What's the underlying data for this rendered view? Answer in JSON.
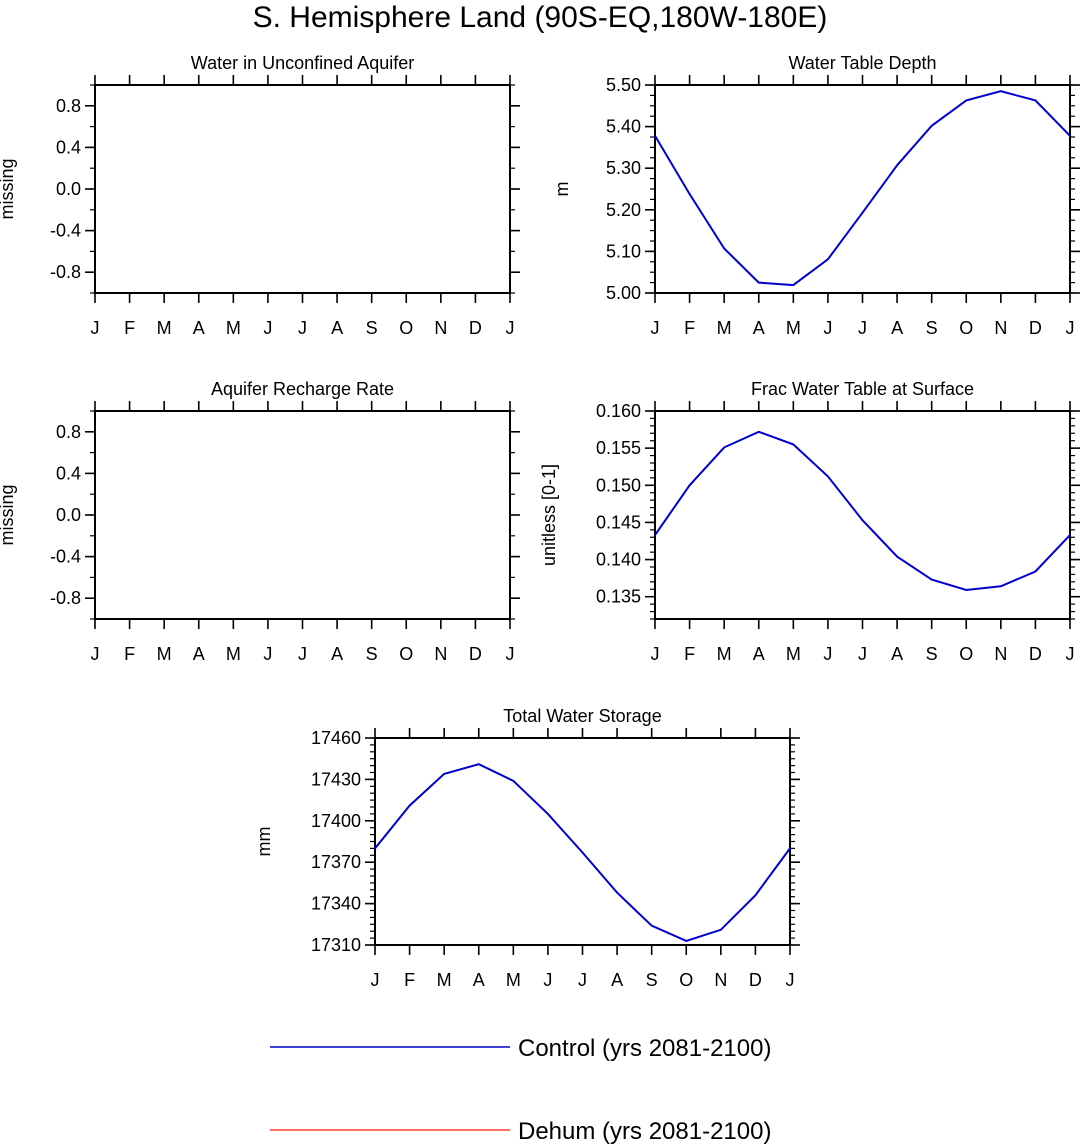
{
  "figure": {
    "title": "S. Hemisphere Land (90S-EQ,180W-180E)",
    "series_colors": {
      "control": "#0000d0",
      "dehum": "#ff3b2f"
    },
    "legend": [
      {
        "label": "Control (yrs 2081-2100)",
        "color": "#0000d0"
      },
      {
        "label": "Dehum (yrs 2081-2100)",
        "color": "#ff3b2f"
      }
    ]
  },
  "chart_data": [
    {
      "type": "line",
      "title": "Water in Unconfined Aquifer",
      "ylabel": "missing",
      "x": [
        "J",
        "F",
        "M",
        "A",
        "M",
        "J",
        "J",
        "A",
        "S",
        "O",
        "N",
        "D",
        "J"
      ],
      "ylim": [
        -1.0,
        1.0
      ],
      "yticks": [
        -0.8,
        -0.4,
        0.0,
        0.4,
        0.8
      ],
      "ytick_labels": [
        "-0.8",
        "-0.4",
        "0.0",
        "0.4",
        "0.8"
      ],
      "minor_step": 0.2,
      "series": []
    },
    {
      "type": "line",
      "title": "Water Table Depth",
      "ylabel": "m",
      "x": [
        "J",
        "F",
        "M",
        "A",
        "M",
        "J",
        "J",
        "A",
        "S",
        "O",
        "N",
        "D",
        "J"
      ],
      "ylim": [
        5.0,
        5.5
      ],
      "yticks": [
        5.0,
        5.1,
        5.2,
        5.3,
        5.4,
        5.5
      ],
      "ytick_labels": [
        "5.00",
        "5.10",
        "5.20",
        "5.30",
        "5.40",
        "5.50"
      ],
      "minor_step": 0.025,
      "series": [
        {
          "name": "Control (yrs 2081-2100)",
          "values": [
            5.378,
            5.238,
            5.107,
            5.025,
            5.019,
            5.081,
            5.193,
            5.307,
            5.402,
            5.463,
            5.485,
            5.463,
            5.378
          ]
        }
      ]
    },
    {
      "type": "line",
      "title": "Aquifer Recharge Rate",
      "ylabel": "missing",
      "x": [
        "J",
        "F",
        "M",
        "A",
        "M",
        "J",
        "J",
        "A",
        "S",
        "O",
        "N",
        "D",
        "J"
      ],
      "ylim": [
        -1.0,
        1.0
      ],
      "yticks": [
        -0.8,
        -0.4,
        0.0,
        0.4,
        0.8
      ],
      "ytick_labels": [
        "-0.8",
        "-0.4",
        "0.0",
        "0.4",
        "0.8"
      ],
      "minor_step": 0.2,
      "series": []
    },
    {
      "type": "line",
      "title": "Frac Water Table at Surface",
      "ylabel": "unitless [0-1]",
      "x": [
        "J",
        "F",
        "M",
        "A",
        "M",
        "J",
        "J",
        "A",
        "S",
        "O",
        "N",
        "D",
        "J"
      ],
      "ylim": [
        0.132,
        0.16
      ],
      "yticks": [
        0.135,
        0.14,
        0.145,
        0.15,
        0.155,
        0.16
      ],
      "ytick_labels": [
        "0.135",
        "0.140",
        "0.145",
        "0.150",
        "0.155",
        "0.160"
      ],
      "minor_step": 0.001,
      "series": [
        {
          "name": "Control (yrs 2081-2100)",
          "values": [
            0.1433,
            0.15,
            0.1551,
            0.1572,
            0.1555,
            0.1512,
            0.1453,
            0.1404,
            0.1373,
            0.1359,
            0.1364,
            0.1384,
            0.1433
          ]
        }
      ]
    },
    {
      "type": "line",
      "title": "Total Water Storage",
      "ylabel": "mm",
      "x": [
        "J",
        "F",
        "M",
        "A",
        "M",
        "J",
        "J",
        "A",
        "S",
        "O",
        "N",
        "D",
        "J"
      ],
      "ylim": [
        17310,
        17460
      ],
      "yticks": [
        17310,
        17340,
        17370,
        17400,
        17430,
        17460
      ],
      "ytick_labels": [
        "17310",
        "17340",
        "17370",
        "17400",
        "17430",
        "17460"
      ],
      "minor_step": 5,
      "series": [
        {
          "name": "Control (yrs 2081-2100)",
          "values": [
            17380,
            17411,
            17434,
            17441,
            17429,
            17405,
            17377,
            17348,
            17324,
            17313,
            17321,
            17346,
            17380
          ]
        }
      ]
    }
  ]
}
